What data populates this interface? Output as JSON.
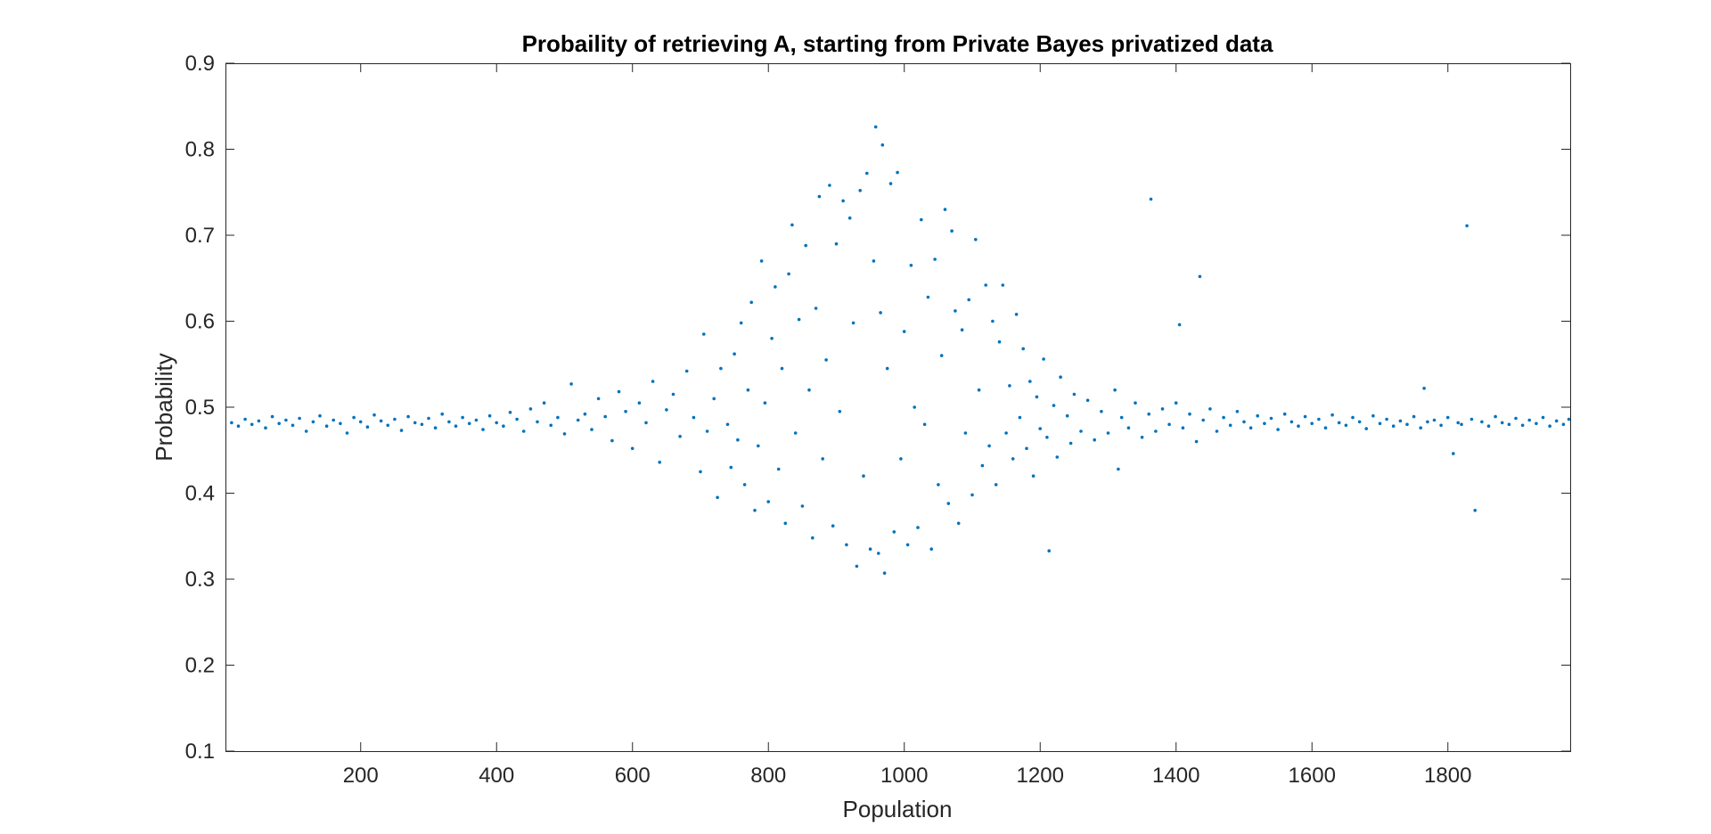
{
  "chart_data": {
    "type": "scatter",
    "title": "Probaility of retrieving A, starting from Private Bayes privatized data",
    "xlabel": "Population",
    "ylabel": "Probability",
    "xlim": [
      1,
      1980
    ],
    "ylim": [
      0.1,
      0.9
    ],
    "xticks": [
      200,
      400,
      600,
      800,
      1000,
      1200,
      1400,
      1600,
      1800
    ],
    "yticks": [
      0.1,
      0.2,
      0.3,
      0.4,
      0.5,
      0.6,
      0.7,
      0.8,
      0.9
    ],
    "grid": false,
    "legend": "none",
    "marker_color": "#0072BD",
    "series": [
      {
        "values": [
          [
            10,
            0.482
          ],
          [
            20,
            0.478
          ],
          [
            30,
            0.486
          ],
          [
            40,
            0.48
          ],
          [
            50,
            0.484
          ],
          [
            60,
            0.476
          ],
          [
            70,
            0.489
          ],
          [
            80,
            0.481
          ],
          [
            90,
            0.485
          ],
          [
            100,
            0.479
          ],
          [
            110,
            0.487
          ],
          [
            120,
            0.472
          ],
          [
            130,
            0.483
          ],
          [
            140,
            0.49
          ],
          [
            150,
            0.478
          ],
          [
            160,
            0.485
          ],
          [
            170,
            0.481
          ],
          [
            180,
            0.47
          ],
          [
            190,
            0.488
          ],
          [
            200,
            0.483
          ],
          [
            210,
            0.477
          ],
          [
            220,
            0.491
          ],
          [
            230,
            0.484
          ],
          [
            240,
            0.479
          ],
          [
            250,
            0.486
          ],
          [
            260,
            0.473
          ],
          [
            270,
            0.489
          ],
          [
            280,
            0.482
          ],
          [
            290,
            0.48
          ],
          [
            300,
            0.487
          ],
          [
            310,
            0.476
          ],
          [
            320,
            0.492
          ],
          [
            330,
            0.483
          ],
          [
            340,
            0.478
          ],
          [
            350,
            0.488
          ],
          [
            360,
            0.481
          ],
          [
            370,
            0.485
          ],
          [
            380,
            0.474
          ],
          [
            390,
            0.49
          ],
          [
            400,
            0.482
          ],
          [
            410,
            0.478
          ],
          [
            420,
            0.494
          ],
          [
            430,
            0.486
          ],
          [
            440,
            0.472
          ],
          [
            450,
            0.498
          ],
          [
            460,
            0.483
          ],
          [
            470,
            0.505
          ],
          [
            480,
            0.479
          ],
          [
            490,
            0.488
          ],
          [
            500,
            0.469
          ],
          [
            510,
            0.527
          ],
          [
            520,
            0.485
          ],
          [
            530,
            0.492
          ],
          [
            540,
            0.474
          ],
          [
            550,
            0.51
          ],
          [
            560,
            0.489
          ],
          [
            570,
            0.461
          ],
          [
            580,
            0.518
          ],
          [
            590,
            0.495
          ],
          [
            600,
            0.452
          ],
          [
            610,
            0.505
          ],
          [
            620,
            0.482
          ],
          [
            630,
            0.53
          ],
          [
            640,
            0.436
          ],
          [
            650,
            0.497
          ],
          [
            660,
            0.515
          ],
          [
            670,
            0.466
          ],
          [
            680,
            0.542
          ],
          [
            690,
            0.488
          ],
          [
            700,
            0.425
          ],
          [
            705,
            0.585
          ],
          [
            710,
            0.472
          ],
          [
            720,
            0.51
          ],
          [
            725,
            0.395
          ],
          [
            730,
            0.545
          ],
          [
            740,
            0.48
          ],
          [
            745,
            0.43
          ],
          [
            750,
            0.562
          ],
          [
            755,
            0.462
          ],
          [
            760,
            0.598
          ],
          [
            765,
            0.41
          ],
          [
            770,
            0.52
          ],
          [
            775,
            0.622
          ],
          [
            780,
            0.38
          ],
          [
            785,
            0.455
          ],
          [
            790,
            0.67
          ],
          [
            795,
            0.505
          ],
          [
            800,
            0.39
          ],
          [
            805,
            0.58
          ],
          [
            810,
            0.64
          ],
          [
            815,
            0.428
          ],
          [
            820,
            0.545
          ],
          [
            825,
            0.365
          ],
          [
            830,
            0.655
          ],
          [
            835,
            0.712
          ],
          [
            840,
            0.47
          ],
          [
            845,
            0.602
          ],
          [
            850,
            0.385
          ],
          [
            855,
            0.688
          ],
          [
            860,
            0.52
          ],
          [
            865,
            0.348
          ],
          [
            870,
            0.615
          ],
          [
            875,
            0.745
          ],
          [
            880,
            0.44
          ],
          [
            885,
            0.555
          ],
          [
            890,
            0.758
          ],
          [
            895,
            0.362
          ],
          [
            900,
            0.69
          ],
          [
            905,
            0.495
          ],
          [
            910,
            0.74
          ],
          [
            915,
            0.34
          ],
          [
            920,
            0.72
          ],
          [
            925,
            0.598
          ],
          [
            930,
            0.315
          ],
          [
            935,
            0.752
          ],
          [
            940,
            0.42
          ],
          [
            945,
            0.772
          ],
          [
            950,
            0.335
          ],
          [
            955,
            0.67
          ],
          [
            958,
            0.826
          ],
          [
            962,
            0.33
          ],
          [
            965,
            0.61
          ],
          [
            968,
            0.805
          ],
          [
            971,
            0.307
          ],
          [
            975,
            0.545
          ],
          [
            980,
            0.76
          ],
          [
            985,
            0.355
          ],
          [
            990,
            0.773
          ],
          [
            995,
            0.44
          ],
          [
            1000,
            0.588
          ],
          [
            1005,
            0.34
          ],
          [
            1010,
            0.665
          ],
          [
            1015,
            0.5
          ],
          [
            1020,
            0.36
          ],
          [
            1025,
            0.718
          ],
          [
            1030,
            0.48
          ],
          [
            1035,
            0.628
          ],
          [
            1040,
            0.335
          ],
          [
            1045,
            0.672
          ],
          [
            1050,
            0.41
          ],
          [
            1055,
            0.56
          ],
          [
            1060,
            0.73
          ],
          [
            1065,
            0.388
          ],
          [
            1070,
            0.705
          ],
          [
            1075,
            0.612
          ],
          [
            1080,
            0.365
          ],
          [
            1085,
            0.59
          ],
          [
            1090,
            0.47
          ],
          [
            1095,
            0.625
          ],
          [
            1100,
            0.398
          ],
          [
            1105,
            0.695
          ],
          [
            1110,
            0.52
          ],
          [
            1115,
            0.432
          ],
          [
            1120,
            0.642
          ],
          [
            1125,
            0.455
          ],
          [
            1130,
            0.6
          ],
          [
            1135,
            0.41
          ],
          [
            1140,
            0.576
          ],
          [
            1145,
            0.642
          ],
          [
            1150,
            0.47
          ],
          [
            1155,
            0.525
          ],
          [
            1160,
            0.44
          ],
          [
            1165,
            0.608
          ],
          [
            1170,
            0.488
          ],
          [
            1175,
            0.568
          ],
          [
            1180,
            0.452
          ],
          [
            1185,
            0.53
          ],
          [
            1190,
            0.42
          ],
          [
            1195,
            0.512
          ],
          [
            1200,
            0.475
          ],
          [
            1205,
            0.556
          ],
          [
            1210,
            0.465
          ],
          [
            1213,
            0.333
          ],
          [
            1220,
            0.502
          ],
          [
            1225,
            0.442
          ],
          [
            1230,
            0.535
          ],
          [
            1240,
            0.49
          ],
          [
            1245,
            0.458
          ],
          [
            1250,
            0.515
          ],
          [
            1260,
            0.472
          ],
          [
            1270,
            0.508
          ],
          [
            1280,
            0.462
          ],
          [
            1290,
            0.495
          ],
          [
            1300,
            0.47
          ],
          [
            1310,
            0.52
          ],
          [
            1315,
            0.428
          ],
          [
            1320,
            0.488
          ],
          [
            1330,
            0.476
          ],
          [
            1340,
            0.505
          ],
          [
            1350,
            0.465
          ],
          [
            1360,
            0.492
          ],
          [
            1363,
            0.742
          ],
          [
            1370,
            0.472
          ],
          [
            1380,
            0.498
          ],
          [
            1390,
            0.48
          ],
          [
            1400,
            0.505
          ],
          [
            1405,
            0.596
          ],
          [
            1410,
            0.476
          ],
          [
            1420,
            0.492
          ],
          [
            1430,
            0.46
          ],
          [
            1435,
            0.652
          ],
          [
            1440,
            0.485
          ],
          [
            1450,
            0.498
          ],
          [
            1460,
            0.472
          ],
          [
            1470,
            0.488
          ],
          [
            1480,
            0.479
          ],
          [
            1490,
            0.495
          ],
          [
            1500,
            0.483
          ],
          [
            1510,
            0.476
          ],
          [
            1520,
            0.49
          ],
          [
            1530,
            0.481
          ],
          [
            1540,
            0.487
          ],
          [
            1550,
            0.474
          ],
          [
            1560,
            0.492
          ],
          [
            1570,
            0.483
          ],
          [
            1580,
            0.478
          ],
          [
            1590,
            0.489
          ],
          [
            1600,
            0.481
          ],
          [
            1610,
            0.486
          ],
          [
            1620,
            0.476
          ],
          [
            1630,
            0.491
          ],
          [
            1640,
            0.482
          ],
          [
            1650,
            0.479
          ],
          [
            1660,
            0.488
          ],
          [
            1670,
            0.483
          ],
          [
            1680,
            0.475
          ],
          [
            1690,
            0.49
          ],
          [
            1700,
            0.481
          ],
          [
            1710,
            0.486
          ],
          [
            1720,
            0.478
          ],
          [
            1730,
            0.484
          ],
          [
            1740,
            0.48
          ],
          [
            1750,
            0.489
          ],
          [
            1760,
            0.476
          ],
          [
            1765,
            0.522
          ],
          [
            1770,
            0.483
          ],
          [
            1780,
            0.485
          ],
          [
            1790,
            0.479
          ],
          [
            1800,
            0.488
          ],
          [
            1808,
            0.446
          ],
          [
            1815,
            0.482
          ],
          [
            1820,
            0.48
          ],
          [
            1828,
            0.711
          ],
          [
            1835,
            0.486
          ],
          [
            1840,
            0.38
          ],
          [
            1850,
            0.483
          ],
          [
            1860,
            0.478
          ],
          [
            1870,
            0.489
          ],
          [
            1880,
            0.482
          ],
          [
            1890,
            0.48
          ],
          [
            1900,
            0.487
          ],
          [
            1910,
            0.479
          ],
          [
            1920,
            0.485
          ],
          [
            1930,
            0.481
          ],
          [
            1940,
            0.488
          ],
          [
            1950,
            0.478
          ],
          [
            1960,
            0.484
          ],
          [
            1970,
            0.48
          ],
          [
            1978,
            0.486
          ]
        ]
      }
    ]
  }
}
